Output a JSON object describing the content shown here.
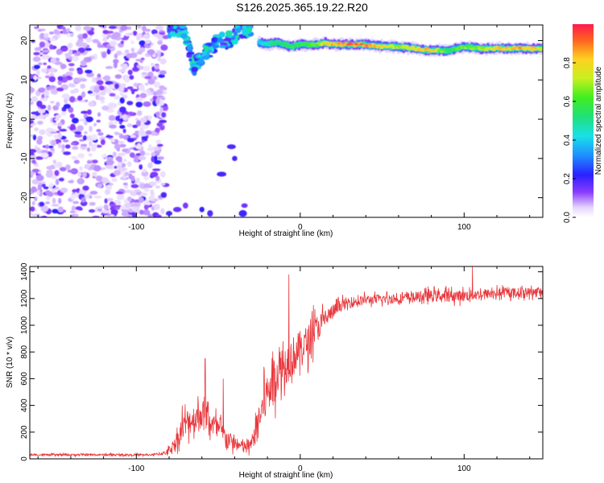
{
  "title": "S126.2025.365.19.22.R20",
  "chart_data": [
    {
      "type": "heatmap",
      "xlabel": "Height of straight line (km)",
      "ylabel": "Frequency (Hz)",
      "xlim": [
        -165,
        148
      ],
      "ylim": [
        -25,
        24
      ],
      "xticks": [
        -100,
        0,
        100
      ],
      "yticks": [
        -20,
        -10,
        0,
        10,
        20
      ],
      "xtick_labels": [
        "-100",
        "0",
        "100"
      ],
      "ytick_labels": [
        "-20",
        "-10",
        "0",
        "10",
        "20"
      ],
      "colorbar": {
        "label": "Normalized spectral amplitude",
        "range": [
          0,
          1
        ],
        "ticks": [
          0,
          0.2,
          0.4,
          0.6,
          0.8
        ],
        "tick_labels": [
          "0.0",
          "0.2",
          "0.4",
          "0.6",
          "0.8"
        ],
        "colormap": "rainbow"
      },
      "ridge": {
        "x": [
          -25,
          -20,
          -15,
          -10,
          -5,
          0,
          5,
          10,
          15,
          20,
          30,
          40,
          50,
          60,
          70,
          80,
          90,
          100,
          110,
          120,
          130,
          140,
          148
        ],
        "y": [
          19.5,
          19.0,
          19.5,
          19.0,
          18.5,
          19.0,
          19.0,
          19.0,
          19.5,
          19.0,
          19.0,
          19.0,
          18.5,
          18.5,
          18.0,
          17.5,
          17.5,
          18.5,
          18.0,
          18.0,
          18.0,
          18.0,
          18.0
        ],
        "amplitude": [
          0.4,
          0.5,
          0.55,
          0.6,
          0.6,
          0.6,
          0.65,
          0.7,
          0.8,
          0.9,
          0.95,
          0.95,
          0.9,
          0.7,
          0.85,
          0.9,
          0.6,
          0.7,
          0.75,
          0.85,
          0.9,
          0.9,
          0.8
        ]
      },
      "noise_region_x": [
        -165,
        -82
      ],
      "early_signal": {
        "x": [
          -80,
          -75,
          -70,
          -65,
          -60,
          -55,
          -50,
          -45,
          -40,
          -35,
          -30
        ],
        "y": [
          23,
          23,
          22,
          13,
          16,
          18,
          20,
          20,
          21,
          23,
          22
        ]
      }
    },
    {
      "type": "line",
      "xlabel": "Height of straight line (km)",
      "ylabel": "SNR (10 * v/v)",
      "xlim": [
        -165,
        148
      ],
      "ylim": [
        0,
        1440
      ],
      "xticks": [
        -100,
        0,
        100
      ],
      "yticks": [
        0,
        200,
        400,
        600,
        800,
        1000,
        1200,
        1400
      ],
      "xtick_labels": [
        "-100",
        "0",
        "100"
      ],
      "ytick_labels": [
        "0",
        "200",
        "400",
        "600",
        "800",
        "1000",
        "1200",
        "1400"
      ],
      "color": "#e8383d",
      "envelope": {
        "x": [
          -165,
          -120,
          -90,
          -82,
          -78,
          -74,
          -70,
          -65,
          -60,
          -55,
          -50,
          -45,
          -40,
          -35,
          -30,
          -26,
          -22,
          -18,
          -14,
          -10,
          -5,
          0,
          5,
          10,
          15,
          20,
          25,
          30,
          40,
          60,
          80,
          100,
          120,
          148
        ],
        "y": [
          30,
          30,
          30,
          45,
          90,
          170,
          270,
          300,
          340,
          280,
          220,
          160,
          110,
          90,
          100,
          260,
          420,
          560,
          650,
          700,
          760,
          820,
          880,
          970,
          1050,
          1100,
          1150,
          1170,
          1190,
          1200,
          1220,
          1220,
          1240,
          1250
        ],
        "spread": [
          10,
          10,
          10,
          20,
          60,
          100,
          140,
          150,
          160,
          140,
          120,
          90,
          70,
          60,
          80,
          140,
          220,
          260,
          240,
          220,
          220,
          200,
          180,
          150,
          110,
          80,
          60,
          60,
          50,
          50,
          60,
          60,
          50,
          50
        ]
      },
      "peaks": {
        "x": [
          -72,
          -58,
          -47,
          -22,
          -7,
          8,
          105
        ],
        "y": [
          400,
          750,
          600,
          660,
          1380,
          1150,
          1440
        ]
      }
    }
  ]
}
